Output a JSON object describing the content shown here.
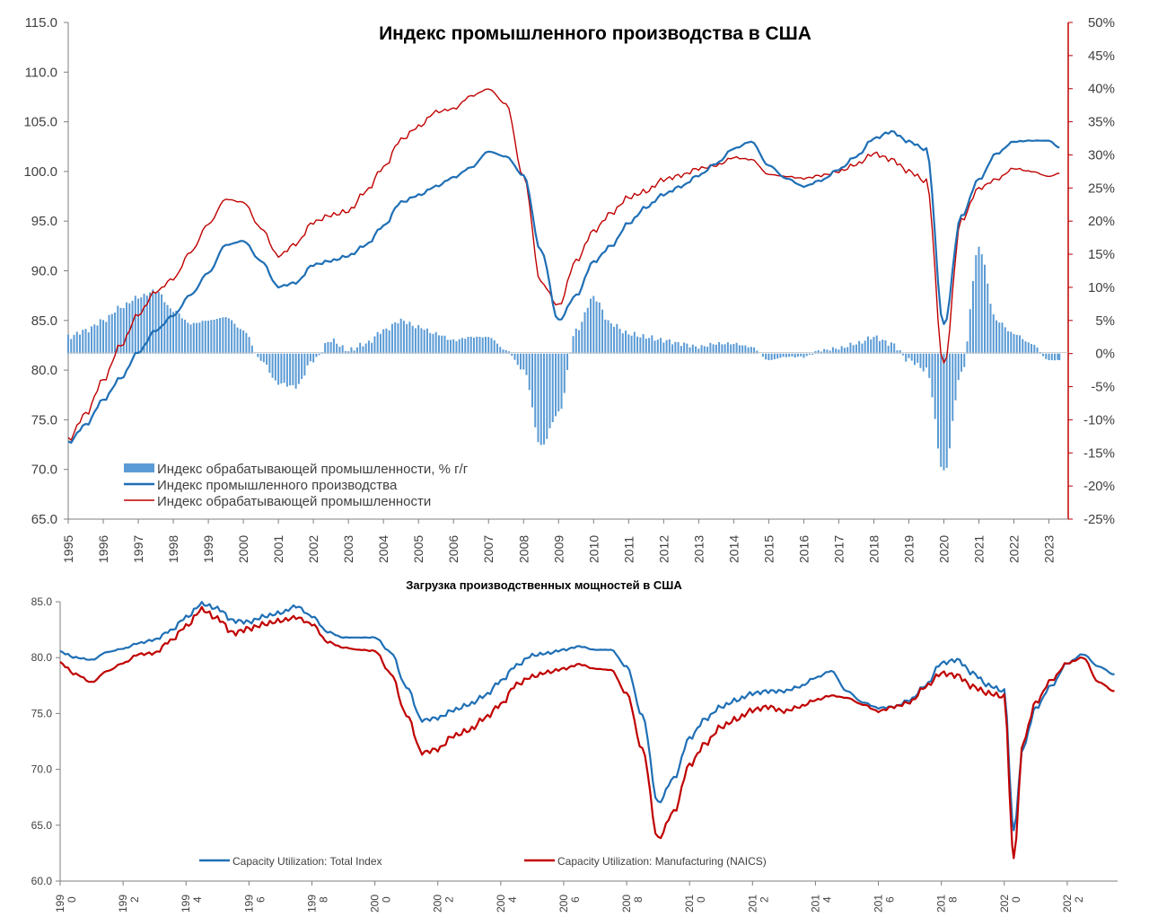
{
  "chart_data": [
    {
      "type": "line",
      "title": "Индекс промышленного производства в США",
      "y_left_ticks": [
        "65.0",
        "70.0",
        "75.0",
        "80.0",
        "85.0",
        "90.0",
        "95.0",
        "100.0",
        "105.0",
        "110.0",
        "115.0"
      ],
      "y_left_range": [
        65,
        115
      ],
      "y_right_ticks": [
        "-25%",
        "-20%",
        "-15%",
        "-10%",
        "-5%",
        "0%",
        "5%",
        "10%",
        "15%",
        "20%",
        "25%",
        "30%",
        "35%",
        "40%",
        "45%",
        "50%"
      ],
      "y_right_range": [
        -25,
        50
      ],
      "x_ticks": [
        "1995",
        "1996",
        "1997",
        "1998",
        "1999",
        "2000",
        "2001",
        "2002",
        "2003",
        "2004",
        "2005",
        "2006",
        "2007",
        "2008",
        "2009",
        "2010",
        "2011",
        "2012",
        "2013",
        "2014",
        "2015",
        "2016",
        "2017",
        "2018",
        "2019",
        "2020",
        "2021",
        "2022",
        "2023"
      ],
      "legend": {
        "position": "bottom-left",
        "entries": [
          "Индекс обрабатывающей промышленности,  % г/г",
          "Индекс промышленного  производства",
          "Индекс обрабатывающей промышленности"
        ]
      },
      "colors": {
        "bars": "#5b9bd5",
        "ip_line": "#1f6fb5",
        "mfg_line": "#c00000",
        "right_axis": "#c00000"
      },
      "series": [
        {
          "name": "Индекс промышленного  производства",
          "axis": "left",
          "x": [
            1995.0,
            1995.5,
            1996.0,
            1996.5,
            1997.0,
            1997.5,
            1998.0,
            1998.5,
            1999.0,
            1999.5,
            2000.0,
            2000.5,
            2001.0,
            2001.5,
            2002.0,
            2002.5,
            2003.0,
            2003.5,
            2004.0,
            2004.5,
            2005.0,
            2005.5,
            2006.0,
            2006.5,
            2007.0,
            2007.5,
            2008.0,
            2008.5,
            2009.0,
            2009.5,
            2010.0,
            2010.5,
            2011.0,
            2011.5,
            2012.0,
            2012.5,
            2013.0,
            2013.5,
            2014.0,
            2014.5,
            2015.0,
            2015.5,
            2016.0,
            2016.5,
            2017.0,
            2017.5,
            2018.0,
            2018.5,
            2019.0,
            2019.5,
            2020.0,
            2020.5,
            2021.0,
            2021.5,
            2022.0,
            2022.5,
            2023.0,
            2023.3
          ],
          "values": [
            72.7,
            74.5,
            77.0,
            79.2,
            81.8,
            84.0,
            85.5,
            87.6,
            89.8,
            92.6,
            93.0,
            91.0,
            88.4,
            88.8,
            90.6,
            91.0,
            91.5,
            92.6,
            94.5,
            96.9,
            97.6,
            98.5,
            99.4,
            100.4,
            102.0,
            101.5,
            99.6,
            92.0,
            85.0,
            87.5,
            90.9,
            92.5,
            94.8,
            96.4,
            97.7,
            98.5,
            99.6,
            100.8,
            102.3,
            103.0,
            100.6,
            99.3,
            98.5,
            99.1,
            100.2,
            101.5,
            103.3,
            104.0,
            103.0,
            102.2,
            84.5,
            95.5,
            99.2,
            101.8,
            103.0,
            103.1,
            103.1,
            102.4
          ]
        },
        {
          "name": "Индекс обрабатывающей промышленности",
          "axis": "left",
          "x": [
            1995.0,
            1995.5,
            1996.0,
            1996.5,
            1997.0,
            1997.5,
            1998.0,
            1998.5,
            1999.0,
            1999.5,
            2000.0,
            2000.5,
            2001.0,
            2001.5,
            2002.0,
            2002.5,
            2003.0,
            2003.5,
            2004.0,
            2004.5,
            2005.0,
            2005.5,
            2006.0,
            2006.5,
            2007.0,
            2007.5,
            2008.0,
            2008.5,
            2009.0,
            2009.5,
            2010.0,
            2010.5,
            2011.0,
            2011.5,
            2012.0,
            2012.5,
            2013.0,
            2013.5,
            2014.0,
            2014.5,
            2015.0,
            2015.5,
            2016.0,
            2016.5,
            2017.0,
            2017.5,
            2018.0,
            2018.5,
            2019.0,
            2019.5,
            2020.0,
            2020.5,
            2021.0,
            2021.5,
            2022.0,
            2022.5,
            2023.0,
            2023.3
          ],
          "values": [
            73.0,
            75.6,
            79.0,
            82.5,
            85.6,
            87.9,
            89.2,
            91.9,
            94.7,
            97.2,
            96.9,
            94.3,
            91.5,
            92.7,
            94.9,
            95.6,
            96.0,
            98.0,
            100.4,
            103.2,
            104.5,
            106.0,
            106.3,
            107.6,
            108.3,
            106.8,
            99.5,
            88.8,
            86.5,
            91.0,
            94.0,
            95.8,
            97.4,
            98.0,
            99.2,
            99.6,
            100.3,
            100.6,
            101.4,
            101.2,
            99.7,
            99.5,
            99.3,
            99.6,
            100.0,
            100.7,
            101.8,
            101.2,
            100.0,
            99.0,
            80.5,
            95.1,
            98.3,
            99.2,
            100.3,
            100.0,
            99.5,
            99.8
          ]
        },
        {
          "name": "Индекс обрабатывающей промышленности,  % г/г",
          "axis": "right",
          "kind": "bar",
          "x": [
            1995.0,
            1995.5,
            1996.0,
            1996.5,
            1997.0,
            1997.5,
            1998.0,
            1998.5,
            1999.0,
            1999.5,
            2000.0,
            2000.5,
            2001.0,
            2001.5,
            2002.0,
            2002.5,
            2003.0,
            2003.5,
            2004.0,
            2004.5,
            2005.0,
            2005.5,
            2006.0,
            2006.5,
            2007.0,
            2007.5,
            2008.0,
            2008.5,
            2009.0,
            2009.5,
            2010.0,
            2010.5,
            2011.0,
            2011.5,
            2012.0,
            2012.5,
            2013.0,
            2013.5,
            2014.0,
            2014.5,
            2015.0,
            2015.5,
            2016.0,
            2016.5,
            2017.0,
            2017.5,
            2018.0,
            2018.5,
            2019.0,
            2019.5,
            2020.0,
            2020.5,
            2021.0,
            2021.5,
            2022.0,
            2022.5,
            2023.0,
            2023.3
          ],
          "values": [
            2.5,
            3.5,
            5.0,
            7.0,
            8.5,
            9.5,
            6.5,
            4.5,
            5.0,
            5.5,
            3.5,
            -1.0,
            -4.5,
            -5.0,
            -1.0,
            2.0,
            0.5,
            1.5,
            3.5,
            5.0,
            4.0,
            3.0,
            2.0,
            2.5,
            2.5,
            0.5,
            -2.5,
            -14.0,
            -9.0,
            3.5,
            8.5,
            4.5,
            3.0,
            2.5,
            2.0,
            1.5,
            1.0,
            1.5,
            1.5,
            1.0,
            -1.0,
            -0.5,
            -0.5,
            0.5,
            0.8,
            1.5,
            2.5,
            1.5,
            -1.0,
            -2.5,
            -18.0,
            -3.0,
            16.0,
            5.0,
            3.0,
            1.5,
            -1.0,
            -1.0
          ]
        }
      ]
    },
    {
      "type": "line",
      "title": "Загрузка производственных мощностей в США",
      "y_ticks": [
        "60.0",
        "65.0",
        "70.0",
        "75.0",
        "80.0",
        "85.0"
      ],
      "y_range": [
        60,
        85
      ],
      "x_ticks": [
        {
          "a": "199",
          "b": "0"
        },
        {
          "a": "199",
          "b": "2"
        },
        {
          "a": "199",
          "b": "4"
        },
        {
          "a": "199",
          "b": "6"
        },
        {
          "a": "199",
          "b": "8"
        },
        {
          "a": "200",
          "b": "0"
        },
        {
          "a": "200",
          "b": "2"
        },
        {
          "a": "200",
          "b": "4"
        },
        {
          "a": "200",
          "b": "6"
        },
        {
          "a": "200",
          "b": "8"
        },
        {
          "a": "201",
          "b": "0"
        },
        {
          "a": "201",
          "b": "2"
        },
        {
          "a": "201",
          "b": "4"
        },
        {
          "a": "201",
          "b": "6"
        },
        {
          "a": "201",
          "b": "8"
        },
        {
          "a": "202",
          "b": "0"
        },
        {
          "a": "202",
          "b": "2"
        }
      ],
      "legend": {
        "position": "bottom",
        "entries": [
          "Capacity Utilization: Total Index",
          "Capacity Utilization: Manufacturing (NAICS)"
        ]
      },
      "colors": {
        "total": "#1f6fb5",
        "mfg": "#c00000"
      },
      "series": [
        {
          "name": "Capacity Utilization: Total Index",
          "x": [
            1990.0,
            1990.5,
            1991.0,
            1991.5,
            1992.0,
            1992.5,
            1993.0,
            1993.5,
            1994.0,
            1994.5,
            1995.0,
            1995.5,
            1996.0,
            1996.5,
            1997.0,
            1997.5,
            1998.0,
            1998.5,
            1999.0,
            1999.5,
            2000.0,
            2000.5,
            2001.0,
            2001.5,
            2002.0,
            2002.5,
            2003.0,
            2003.5,
            2004.0,
            2004.5,
            2005.0,
            2005.5,
            2006.0,
            2006.5,
            2007.0,
            2007.5,
            2008.0,
            2008.5,
            2009.0,
            2009.5,
            2010.0,
            2010.5,
            2011.0,
            2011.5,
            2012.0,
            2012.5,
            2013.0,
            2013.5,
            2014.0,
            2014.5,
            2015.0,
            2015.5,
            2016.0,
            2016.5,
            2017.0,
            2017.5,
            2018.0,
            2018.5,
            2019.0,
            2019.5,
            2020.0,
            2020.3,
            2020.6,
            2021.0,
            2021.5,
            2022.0,
            2022.5,
            2023.0,
            2023.5
          ],
          "values": [
            80.5,
            80.0,
            79.8,
            80.5,
            80.8,
            81.3,
            81.6,
            82.4,
            83.6,
            84.8,
            84.4,
            83.3,
            83.2,
            83.7,
            84.0,
            84.6,
            83.7,
            82.3,
            81.8,
            81.8,
            81.8,
            80.5,
            77.4,
            74.4,
            74.6,
            75.3,
            75.8,
            76.6,
            77.9,
            79.3,
            80.2,
            80.4,
            80.7,
            81.0,
            80.7,
            80.7,
            79.2,
            74.8,
            67.0,
            69.2,
            72.8,
            74.5,
            75.6,
            76.2,
            76.8,
            77.0,
            77.0,
            77.4,
            78.2,
            78.8,
            77.0,
            76.0,
            75.5,
            75.6,
            76.2,
            77.5,
            79.5,
            79.8,
            78.6,
            77.5,
            77.0,
            64.5,
            72.0,
            75.5,
            77.5,
            79.5,
            80.3,
            79.2,
            78.5
          ]
        },
        {
          "name": "Capacity Utilization: Manufacturing (NAICS)",
          "x": [
            1990.0,
            1990.5,
            1991.0,
            1991.5,
            1992.0,
            1992.5,
            1993.0,
            1993.5,
            1994.0,
            1994.5,
            1995.0,
            1995.5,
            1996.0,
            1996.5,
            1997.0,
            1997.5,
            1998.0,
            1998.5,
            1999.0,
            1999.5,
            2000.0,
            2000.5,
            2001.0,
            2001.5,
            2002.0,
            2002.5,
            2003.0,
            2003.5,
            2004.0,
            2004.5,
            2005.0,
            2005.5,
            2006.0,
            2006.5,
            2007.0,
            2007.5,
            2008.0,
            2008.5,
            2009.0,
            2009.5,
            2010.0,
            2010.5,
            2011.0,
            2011.5,
            2012.0,
            2012.5,
            2013.0,
            2013.5,
            2014.0,
            2014.5,
            2015.0,
            2015.5,
            2016.0,
            2016.5,
            2017.0,
            2017.5,
            2018.0,
            2018.5,
            2019.0,
            2019.5,
            2020.0,
            2020.3,
            2020.6,
            2021.0,
            2021.5,
            2022.0,
            2022.5,
            2023.0,
            2023.5
          ],
          "values": [
            79.5,
            78.5,
            77.8,
            78.8,
            79.5,
            80.3,
            80.4,
            81.5,
            82.8,
            84.3,
            83.5,
            82.2,
            82.6,
            83.0,
            83.3,
            83.6,
            83.0,
            81.4,
            80.9,
            80.7,
            80.6,
            78.6,
            74.9,
            71.5,
            71.8,
            73.0,
            73.5,
            74.6,
            75.8,
            77.6,
            78.3,
            78.7,
            79.0,
            79.4,
            79.0,
            78.9,
            76.8,
            71.8,
            63.8,
            66.2,
            70.4,
            72.3,
            73.8,
            74.5,
            75.3,
            75.6,
            75.2,
            75.6,
            76.2,
            76.6,
            76.4,
            75.8,
            75.2,
            75.6,
            76.0,
            77.4,
            78.6,
            78.4,
            77.4,
            76.8,
            76.5,
            62.0,
            72.5,
            76.0,
            78.0,
            79.5,
            80.0,
            77.8,
            77.0
          ]
        }
      ]
    }
  ]
}
